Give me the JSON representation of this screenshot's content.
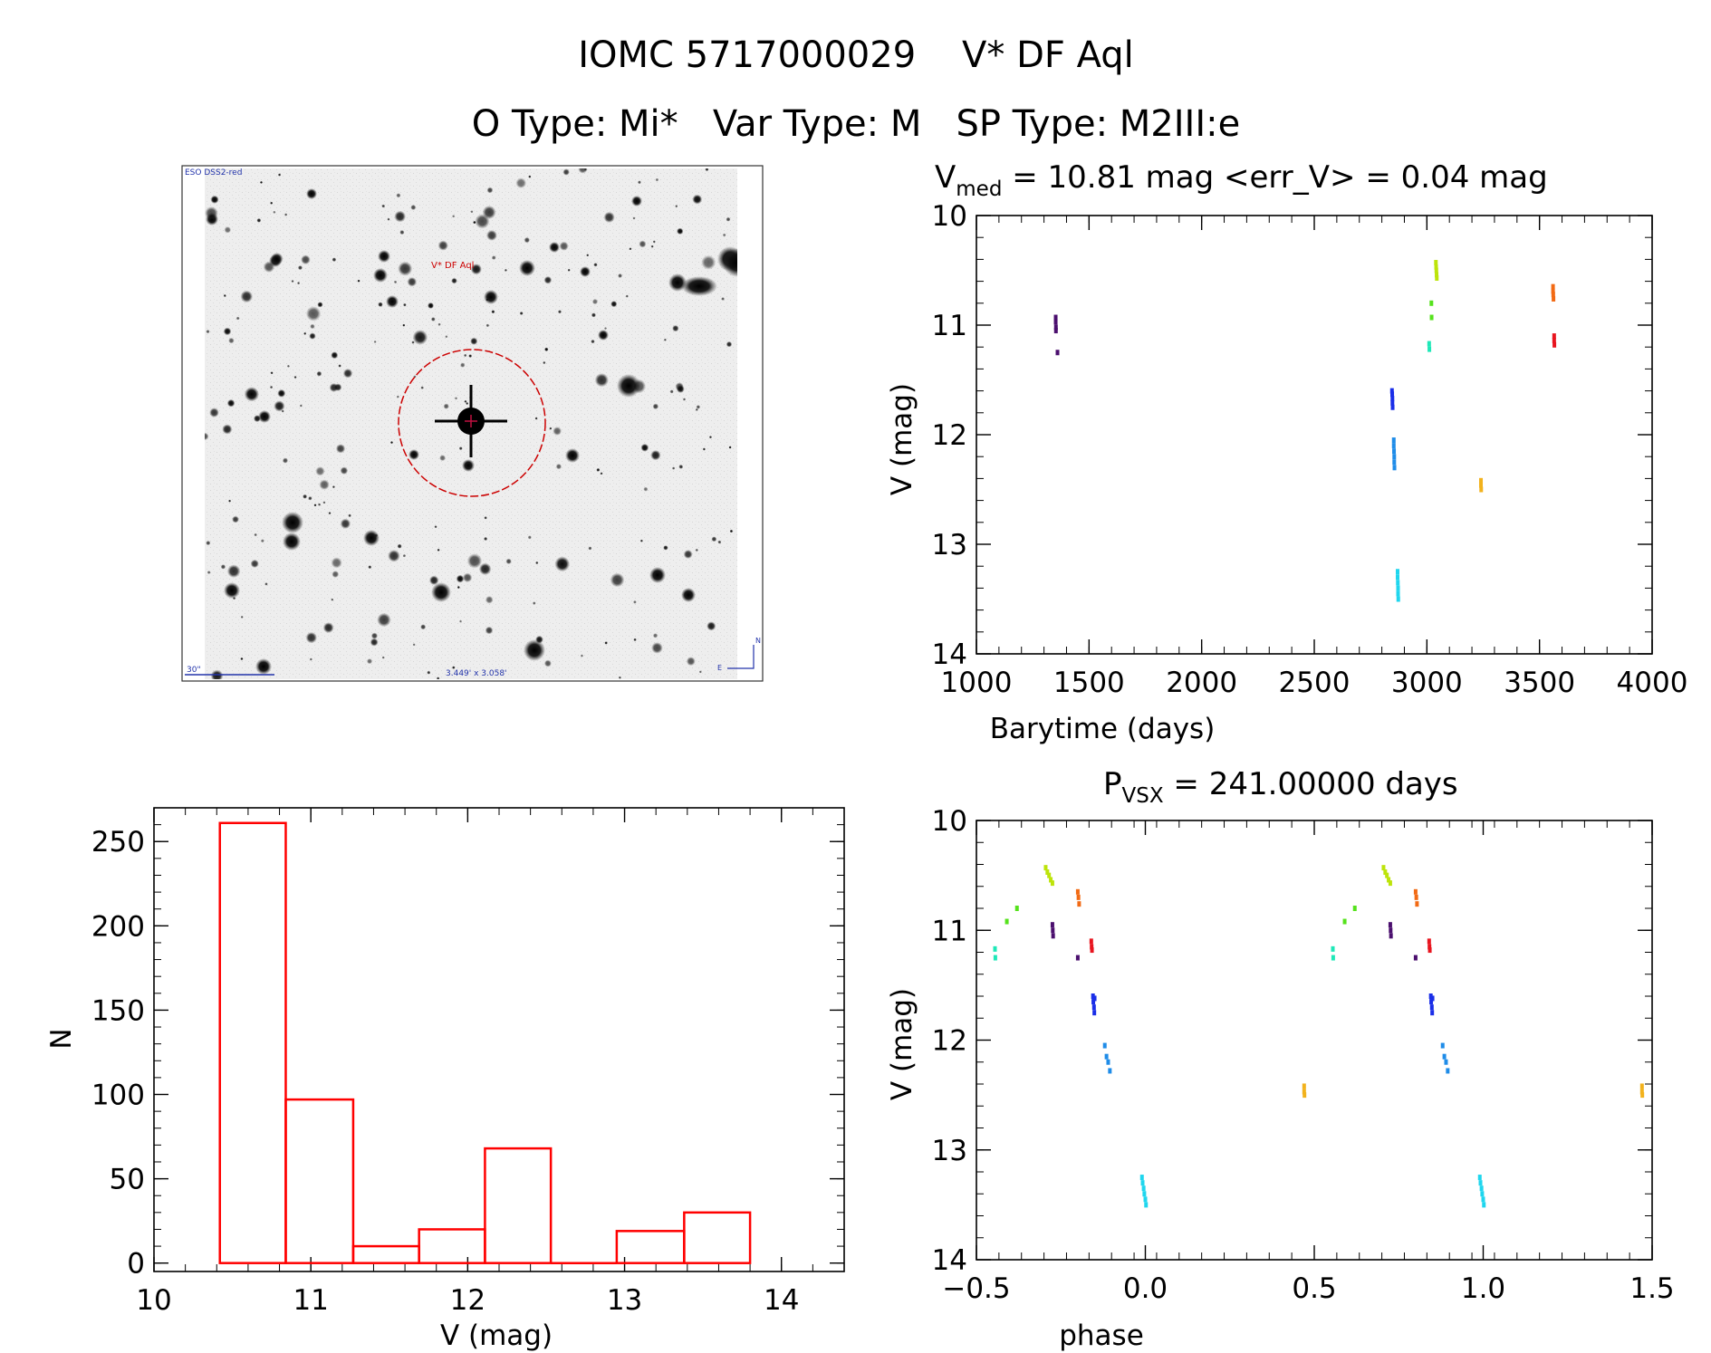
{
  "header": {
    "title_line": "IOMC 5717000029    V* DF Aql",
    "type_line": "O Type: Mi*   Var Type: M   SP Type: M2III:e"
  },
  "finder_image": {
    "survey_label": "ESO DSS2-red",
    "target_label": "V* DF Aql",
    "scale_label": "30\"",
    "fov_label": "3.449' x 3.058'",
    "compass_n": "N",
    "compass_e": "E"
  },
  "colors": {
    "histogram": "#ff0000",
    "circle": "#cc0000",
    "overlay": "#2233aa",
    "purple": "#4b0f6e",
    "blue": "#1a2ee8",
    "azure": "#1f8ce8",
    "cyan": "#1fd6ee",
    "teal": "#1ee8b8",
    "green": "#55e21c",
    "yellowgreen": "#bde40a",
    "gold": "#f2b21c",
    "orange": "#f26a14",
    "red": "#e8141e"
  },
  "chart_data": [
    {
      "id": "lightcurve",
      "type": "scatter",
      "title_main": "V",
      "title_sub": "med",
      "title_rest": " = 10.81 mag <err_V> = 0.04 mag",
      "xlabel": "Barytime (days)",
      "ylabel": "V (mag)",
      "xlim": [
        1000,
        4000
      ],
      "ylim": [
        10,
        14
      ],
      "y_inverted": true,
      "xticks": [
        1000,
        1500,
        2000,
        2500,
        3000,
        3500,
        4000
      ],
      "xtick_labels": [
        "1000",
        "1500",
        "2000",
        "2500",
        "3000",
        "3500",
        "4000"
      ],
      "yticks": [
        10,
        11,
        12,
        13,
        14
      ],
      "ytick_labels": [
        "10",
        "11",
        "12",
        "13",
        "14"
      ],
      "series": [
        {
          "name": "purple",
          "color_key": "purple",
          "points": [
            [
              1352,
              10.93
            ],
            [
              1352,
              10.97
            ],
            [
              1353,
              11.02
            ],
            [
              1353,
              11.05
            ],
            [
              1360,
              11.25
            ]
          ]
        },
        {
          "name": "blue",
          "color_key": "blue",
          "points": [
            [
              2845,
              11.6
            ],
            [
              2846,
              11.63
            ],
            [
              2847,
              11.67
            ],
            [
              2847,
              11.71
            ],
            [
              2848,
              11.75
            ]
          ]
        },
        {
          "name": "azure",
          "color_key": "azure",
          "points": [
            [
              2853,
              12.05
            ],
            [
              2853,
              12.1
            ],
            [
              2854,
              12.15
            ],
            [
              2855,
              12.2
            ],
            [
              2855,
              12.25
            ],
            [
              2856,
              12.3
            ]
          ]
        },
        {
          "name": "cyan",
          "color_key": "cyan",
          "points": [
            [
              2870,
              13.25
            ],
            [
              2870,
              13.3
            ],
            [
              2871,
              13.35
            ],
            [
              2872,
              13.4
            ],
            [
              2872,
              13.45
            ],
            [
              2873,
              13.5
            ]
          ]
        },
        {
          "name": "teal",
          "color_key": "teal",
          "points": [
            [
              3010,
              11.17
            ],
            [
              3011,
              11.22
            ]
          ]
        },
        {
          "name": "green",
          "color_key": "green",
          "points": [
            [
              3020,
              10.8
            ],
            [
              3021,
              10.93
            ]
          ]
        },
        {
          "name": "yellowgreen",
          "color_key": "yellowgreen",
          "points": [
            [
              3040,
              10.43
            ],
            [
              3041,
              10.47
            ],
            [
              3042,
              10.5
            ],
            [
              3043,
              10.54
            ],
            [
              3044,
              10.57
            ]
          ]
        },
        {
          "name": "gold",
          "color_key": "gold",
          "points": [
            [
              3240,
              12.42
            ],
            [
              3240,
              12.46
            ],
            [
              3241,
              12.5
            ]
          ]
        },
        {
          "name": "orange",
          "color_key": "orange",
          "points": [
            [
              3560,
              10.65
            ],
            [
              3560,
              10.69
            ],
            [
              3561,
              10.72
            ],
            [
              3562,
              10.76
            ]
          ]
        },
        {
          "name": "red",
          "color_key": "red",
          "points": [
            [
              3565,
              11.1
            ],
            [
              3565,
              11.14
            ],
            [
              3566,
              11.18
            ]
          ]
        }
      ]
    },
    {
      "id": "phased",
      "type": "scatter",
      "title_main": "P",
      "title_sub": "VSX",
      "title_rest": " = 241.00000 days",
      "xlabel": "phase",
      "ylabel": "V (mag)",
      "xlim": [
        -0.5,
        1.5
      ],
      "ylim": [
        10,
        14
      ],
      "y_inverted": true,
      "xticks": [
        -0.5,
        0.0,
        0.5,
        1.0,
        1.5
      ],
      "xtick_labels": [
        "−0.5",
        "0.0",
        "0.5",
        "1.0",
        "1.5"
      ],
      "yticks": [
        10,
        11,
        12,
        13,
        14
      ],
      "ytick_labels": [
        "10",
        "11",
        "12",
        "13",
        "14"
      ],
      "series": [
        {
          "name": "teal",
          "color_key": "teal",
          "points": [
            [
              -0.445,
              11.17
            ],
            [
              -0.444,
              11.25
            ],
            [
              0.555,
              11.17
            ],
            [
              0.556,
              11.25
            ]
          ]
        },
        {
          "name": "green",
          "color_key": "green",
          "points": [
            [
              -0.41,
              10.92
            ],
            [
              -0.38,
              10.8
            ],
            [
              0.59,
              10.92
            ],
            [
              0.62,
              10.8
            ]
          ]
        },
        {
          "name": "yellowgreen",
          "color_key": "yellowgreen",
          "points": [
            [
              -0.295,
              10.43
            ],
            [
              -0.29,
              10.47
            ],
            [
              -0.285,
              10.5
            ],
            [
              -0.28,
              10.54
            ],
            [
              -0.275,
              10.57
            ],
            [
              0.705,
              10.43
            ],
            [
              0.71,
              10.47
            ],
            [
              0.715,
              10.5
            ],
            [
              0.72,
              10.54
            ],
            [
              0.725,
              10.57
            ]
          ]
        },
        {
          "name": "purple",
          "color_key": "purple",
          "points": [
            [
              -0.275,
              10.95
            ],
            [
              -0.274,
              11.0
            ],
            [
              -0.273,
              11.05
            ],
            [
              -0.2,
              11.25
            ],
            [
              0.725,
              10.95
            ],
            [
              0.726,
              11.0
            ],
            [
              0.727,
              11.05
            ],
            [
              0.8,
              11.25
            ]
          ]
        },
        {
          "name": "orange",
          "color_key": "orange",
          "points": [
            [
              -0.2,
              10.65
            ],
            [
              -0.198,
              10.7
            ],
            [
              -0.196,
              10.76
            ],
            [
              0.8,
              10.65
            ],
            [
              0.802,
              10.7
            ],
            [
              0.804,
              10.76
            ]
          ]
        },
        {
          "name": "red",
          "color_key": "red",
          "points": [
            [
              -0.16,
              11.1
            ],
            [
              -0.159,
              11.15
            ],
            [
              -0.158,
              11.18
            ],
            [
              0.84,
              11.1
            ],
            [
              0.841,
              11.15
            ],
            [
              0.842,
              11.18
            ]
          ]
        },
        {
          "name": "blue",
          "color_key": "blue",
          "points": [
            [
              -0.155,
              11.6
            ],
            [
              -0.154,
              11.65
            ],
            [
              -0.15,
              11.62
            ],
            [
              -0.152,
              11.7
            ],
            [
              -0.151,
              11.75
            ],
            [
              0.845,
              11.6
            ],
            [
              0.846,
              11.65
            ],
            [
              0.85,
              11.62
            ],
            [
              0.848,
              11.7
            ],
            [
              0.849,
              11.75
            ]
          ]
        },
        {
          "name": "azure",
          "color_key": "azure",
          "points": [
            [
              -0.12,
              12.05
            ],
            [
              -0.115,
              12.15
            ],
            [
              -0.11,
              12.2
            ],
            [
              -0.105,
              12.28
            ],
            [
              0.88,
              12.05
            ],
            [
              0.885,
              12.15
            ],
            [
              0.89,
              12.2
            ],
            [
              0.895,
              12.28
            ]
          ]
        },
        {
          "name": "cyan",
          "color_key": "cyan",
          "points": [
            [
              -0.01,
              13.25
            ],
            [
              -0.008,
              13.3
            ],
            [
              -0.005,
              13.35
            ],
            [
              -0.003,
              13.4
            ],
            [
              0.0,
              13.45
            ],
            [
              0.002,
              13.5
            ],
            [
              0.99,
              13.25
            ],
            [
              0.992,
              13.3
            ],
            [
              0.995,
              13.35
            ],
            [
              0.997,
              13.4
            ],
            [
              1.0,
              13.45
            ],
            [
              1.002,
              13.5
            ]
          ]
        },
        {
          "name": "gold",
          "color_key": "gold",
          "points": [
            [
              0.47,
              12.42
            ],
            [
              0.47,
              12.47
            ],
            [
              0.471,
              12.5
            ],
            [
              1.47,
              12.42
            ],
            [
              1.47,
              12.47
            ],
            [
              1.471,
              12.5
            ]
          ]
        }
      ]
    },
    {
      "id": "histogram",
      "type": "bar",
      "xlabel": "V (mag)",
      "ylabel": "N",
      "xlim": [
        10.0,
        14.4
      ],
      "ylim": [
        -5,
        270
      ],
      "xticks": [
        10,
        11,
        12,
        13,
        14
      ],
      "xtick_labels": [
        "10",
        "11",
        "12",
        "13",
        "14"
      ],
      "yticks": [
        0,
        50,
        100,
        150,
        200,
        250
      ],
      "ytick_labels": [
        "0",
        "50",
        "100",
        "150",
        "200",
        "250"
      ],
      "bins": [
        {
          "x0": 10.42,
          "x1": 10.84,
          "count": 261
        },
        {
          "x0": 10.84,
          "x1": 11.27,
          "count": 97
        },
        {
          "x0": 11.27,
          "x1": 11.69,
          "count": 10
        },
        {
          "x0": 11.69,
          "x1": 12.11,
          "count": 20
        },
        {
          "x0": 12.11,
          "x1": 12.53,
          "count": 68
        },
        {
          "x0": 12.53,
          "x1": 12.95,
          "count": 0
        },
        {
          "x0": 12.95,
          "x1": 13.38,
          "count": 19
        },
        {
          "x0": 13.38,
          "x1": 13.8,
          "count": 30
        }
      ]
    }
  ]
}
